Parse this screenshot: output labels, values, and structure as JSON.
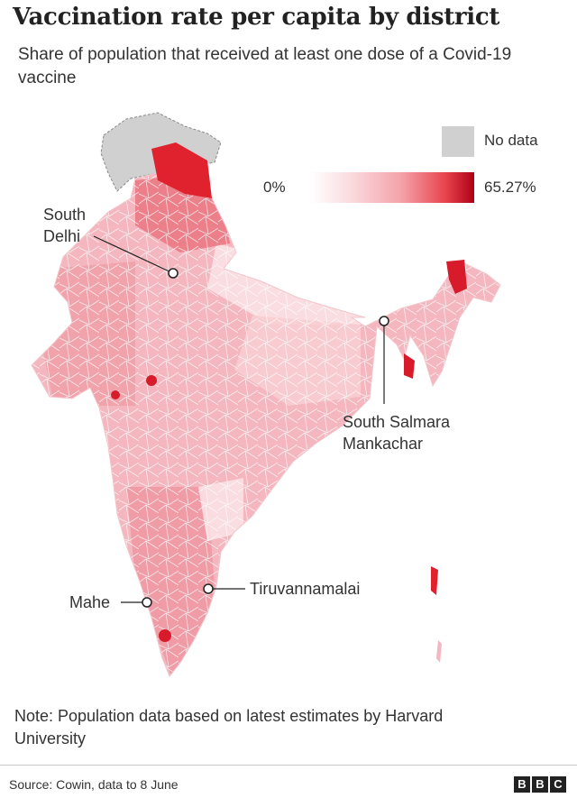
{
  "header": {
    "title": "Vaccination rate per capita by district",
    "subtitle": "Share of population that received at least one dose of a Covid-19 vaccine"
  },
  "legend": {
    "no_data_label": "No data",
    "min_label": "0%",
    "max_label": "65.27%",
    "scale_min_percent": 0,
    "scale_max_percent": 65.27,
    "colors": {
      "no_data": "#d0d0d0",
      "low": "#ffffff",
      "mid": "#f4a3ab",
      "high": "#b00015"
    }
  },
  "callouts": {
    "south_delhi": "South Delhi",
    "south_delhi_line1": "South",
    "south_delhi_line2": "Delhi",
    "south_salmara_line1": "South Salmara",
    "south_salmara_line2": "Mankachar",
    "tiruvannamalai": "Tiruvannamalai",
    "mahe": "Mahe"
  },
  "footer": {
    "note": "Note: Population data based on latest estimates by Harvard University",
    "source": "Source: Cowin, data to 8 June",
    "logo_letters": [
      "B",
      "B",
      "C"
    ]
  }
}
